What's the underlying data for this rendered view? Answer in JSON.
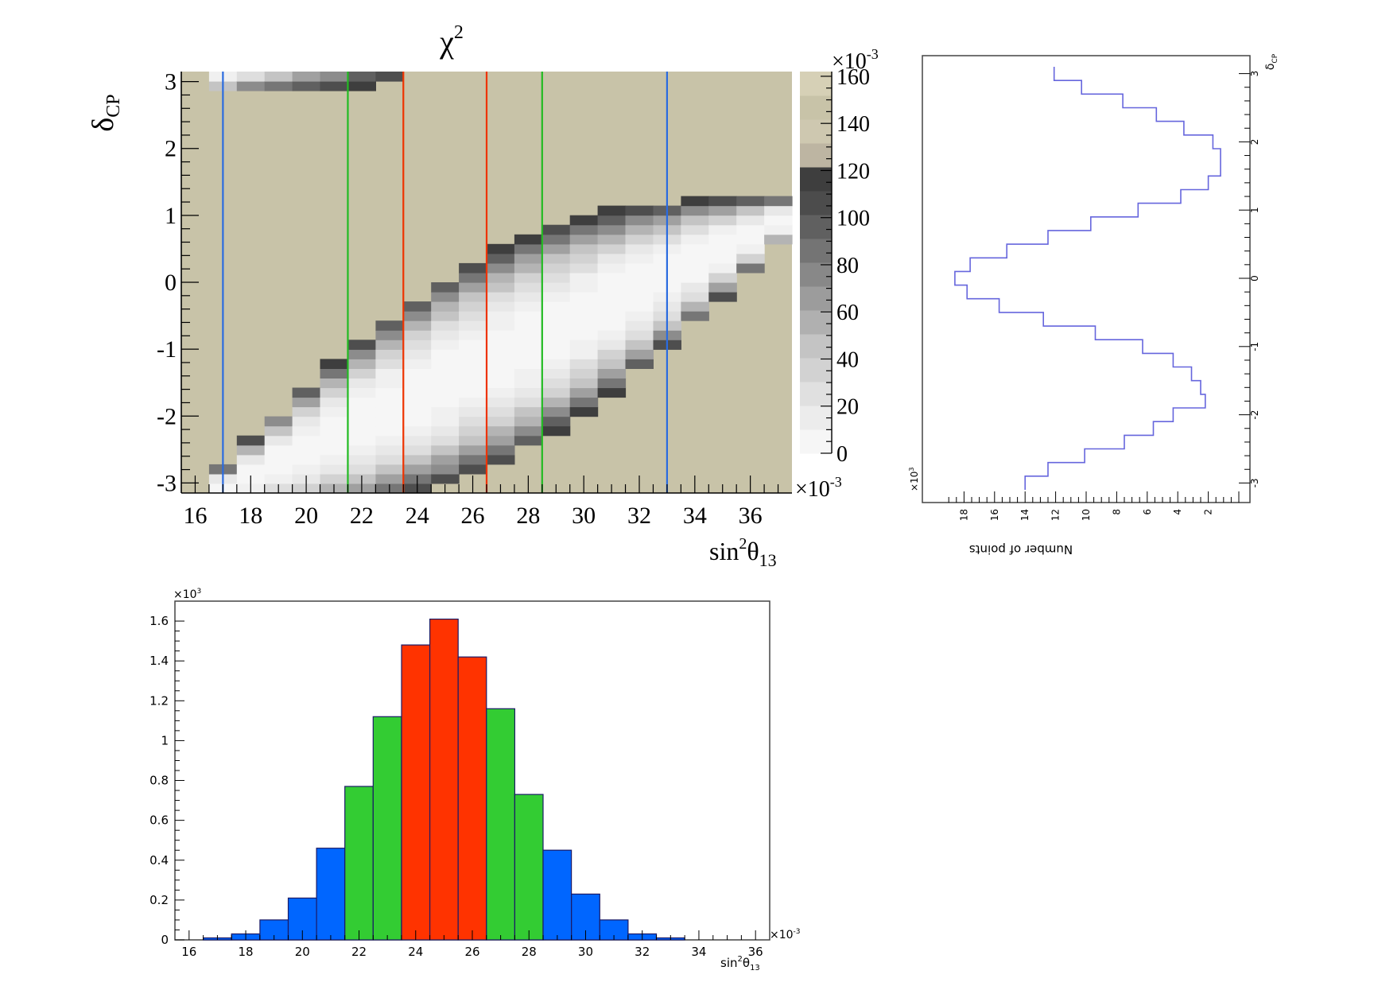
{
  "colors": {
    "frame_bg": "#c8c3a8",
    "blue_line": "#2a6be0",
    "green_line": "#22bb22",
    "red_line": "#ee3300",
    "hist_red": "#ff3300",
    "hist_green": "#33cc33",
    "hist_blue": "#0066ff",
    "profile_line": "#6666dd"
  },
  "chart_data": [
    {
      "type": "heatmap",
      "name": "chi2-map",
      "title": "χ",
      "title_sup": "2",
      "ylabel": "δ",
      "ylabel_sub": "CP",
      "xlabel": "sin",
      "xlabel_sup": "2",
      "xlabel_mid": "θ",
      "xlabel_sub": "13",
      "x_multiplier": "×10",
      "x_multiplier_exp": "-3",
      "xlim": [
        15.5,
        37.5
      ],
      "ylim": [
        -3.15,
        3.15
      ],
      "x_ticks": [
        "16",
        "18",
        "20",
        "22",
        "24",
        "26",
        "28",
        "30",
        "32",
        "34",
        "36"
      ],
      "x_tick_values": [
        16,
        18,
        20,
        22,
        24,
        26,
        28,
        30,
        32,
        34,
        36
      ],
      "y_ticks": [
        "3",
        "2",
        "1",
        "0",
        "-1",
        "-2",
        "-3"
      ],
      "y_tick_values": [
        3,
        2,
        1,
        0,
        -1,
        -2,
        -3
      ],
      "band": {
        "x_start": 16.5,
        "x_end": 37.5,
        "bins": 21,
        "center_slope": 0.2,
        "center_offset": -6.5,
        "half_width_start": 0.45,
        "half_width_end": 0.45,
        "tip_half_width": 0.2
      },
      "vertical_lines": [
        {
          "x": 17.0,
          "color": "blue"
        },
        {
          "x": 21.5,
          "color": "green"
        },
        {
          "x": 23.5,
          "color": "red"
        },
        {
          "x": 26.5,
          "color": "red"
        },
        {
          "x": 28.5,
          "color": "green"
        },
        {
          "x": 33.0,
          "color": "blue"
        }
      ],
      "colorbar": {
        "multiplier": "×10",
        "multiplier_exp": "-3",
        "ticks": [
          "160",
          "140",
          "120",
          "100",
          "80",
          "60",
          "40",
          "20",
          "0"
        ],
        "tick_values": [
          160,
          140,
          120,
          100,
          80,
          60,
          40,
          20,
          0
        ],
        "range": [
          0,
          160
        ],
        "levels": [
          "#f6f6f6",
          "#ececec",
          "#e0e0e0",
          "#d2d2d2",
          "#c4c4c4",
          "#b0b0b0",
          "#9c9c9c",
          "#888888",
          "#747474",
          "#606060",
          "#4c4c4c",
          "#3e3e3e",
          "#bdb5a2",
          "#cec8b0",
          "#c8c3a8",
          "#d6d0b6"
        ]
      }
    },
    {
      "type": "bar",
      "name": "sin2theta13-histogram",
      "x_ticks": [
        "16",
        "18",
        "20",
        "22",
        "24",
        "26",
        "28",
        "30",
        "32",
        "34",
        "36"
      ],
      "x_tick_values": [
        16,
        18,
        20,
        22,
        24,
        26,
        28,
        30,
        32,
        34,
        36
      ],
      "xlabel": "sin",
      "xlabel_sup": "2",
      "xlabel_mid": "θ",
      "xlabel_sub": "13",
      "x_multiplier": "×10",
      "x_multiplier_exp": "-3",
      "y_multiplier": "×10",
      "y_multiplier_exp": "3",
      "y_ticks": [
        "1.6",
        "1.4",
        "1.2",
        "1",
        "0.8",
        "0.6",
        "0.4",
        "0.2",
        "0"
      ],
      "y_tick_values": [
        1.6,
        1.4,
        1.2,
        1.0,
        0.8,
        0.6,
        0.4,
        0.2,
        0
      ],
      "xlim": [
        15.5,
        36.5
      ],
      "ylim": [
        0,
        1.7
      ],
      "bins": [
        {
          "x0": 16.5,
          "x1": 17.5,
          "value": 0.01,
          "band": "blue"
        },
        {
          "x0": 17.5,
          "x1": 18.5,
          "value": 0.03,
          "band": "blue"
        },
        {
          "x0": 18.5,
          "x1": 19.5,
          "value": 0.1,
          "band": "blue"
        },
        {
          "x0": 19.5,
          "x1": 20.5,
          "value": 0.21,
          "band": "blue"
        },
        {
          "x0": 20.5,
          "x1": 21.5,
          "value": 0.46,
          "band": "blue"
        },
        {
          "x0": 21.5,
          "x1": 22.5,
          "value": 0.77,
          "band": "green"
        },
        {
          "x0": 22.5,
          "x1": 23.5,
          "value": 1.12,
          "band": "green"
        },
        {
          "x0": 23.5,
          "x1": 24.5,
          "value": 1.48,
          "band": "red"
        },
        {
          "x0": 24.5,
          "x1": 25.5,
          "value": 1.61,
          "band": "red"
        },
        {
          "x0": 25.5,
          "x1": 26.5,
          "value": 1.42,
          "band": "red"
        },
        {
          "x0": 26.5,
          "x1": 27.5,
          "value": 1.16,
          "band": "green"
        },
        {
          "x0": 27.5,
          "x1": 28.5,
          "value": 0.73,
          "band": "green"
        },
        {
          "x0": 28.5,
          "x1": 29.5,
          "value": 0.45,
          "band": "blue"
        },
        {
          "x0": 29.5,
          "x1": 30.5,
          "value": 0.23,
          "band": "blue"
        },
        {
          "x0": 30.5,
          "x1": 31.5,
          "value": 0.1,
          "band": "blue"
        },
        {
          "x0": 31.5,
          "x1": 32.5,
          "value": 0.03,
          "band": "blue"
        },
        {
          "x0": 32.5,
          "x1": 33.5,
          "value": 0.01,
          "band": "blue"
        },
        {
          "x0": 33.5,
          "x1": 34.5,
          "value": 0.0,
          "band": "blue"
        },
        {
          "x0": 34.5,
          "x1": 35.5,
          "value": 0.0,
          "band": "blue"
        },
        {
          "x0": 35.5,
          "x1": 36.5,
          "value": 0.0,
          "band": "blue"
        }
      ]
    },
    {
      "type": "line",
      "name": "deltacp-profile-rotated",
      "xlabel": "Number of points",
      "ylabel": "δ",
      "ylabel_sub": "CP",
      "x_multiplier": "×10",
      "x_multiplier_exp": "3",
      "count_ticks": [
        "18",
        "16",
        "14",
        "12",
        "10",
        "8",
        "6",
        "4",
        "2"
      ],
      "count_tick_values": [
        18,
        16,
        14,
        12,
        10,
        8,
        6,
        4,
        2
      ],
      "delta_ticks": [
        "3",
        "2",
        "1",
        "0",
        "-1",
        "-2",
        "-3"
      ],
      "delta_tick_values": [
        3,
        2,
        1,
        0,
        -1,
        -2,
        -3
      ],
      "count_lim": [
        0,
        20
      ],
      "delta_lim": [
        -3.1,
        3.1
      ],
      "profile": [
        {
          "d0": 2.9,
          "d1": 3.1,
          "count": 12.1
        },
        {
          "d0": 2.7,
          "d1": 2.9,
          "count": 10.3
        },
        {
          "d0": 2.5,
          "d1": 2.7,
          "count": 7.6
        },
        {
          "d0": 2.3,
          "d1": 2.5,
          "count": 5.4
        },
        {
          "d0": 2.1,
          "d1": 2.3,
          "count": 3.6
        },
        {
          "d0": 1.9,
          "d1": 2.1,
          "count": 1.7
        },
        {
          "d0": 1.7,
          "d1": 1.9,
          "count": 1.2
        },
        {
          "d0": 1.5,
          "d1": 1.7,
          "count": 1.2
        },
        {
          "d0": 1.3,
          "d1": 1.5,
          "count": 2.0
        },
        {
          "d0": 1.1,
          "d1": 1.3,
          "count": 3.8
        },
        {
          "d0": 0.9,
          "d1": 1.1,
          "count": 6.6
        },
        {
          "d0": 0.7,
          "d1": 0.9,
          "count": 9.7
        },
        {
          "d0": 0.5,
          "d1": 0.7,
          "count": 12.5
        },
        {
          "d0": 0.3,
          "d1": 0.5,
          "count": 15.2
        },
        {
          "d0": 0.1,
          "d1": 0.3,
          "count": 17.6
        },
        {
          "d0": -0.1,
          "d1": 0.1,
          "count": 18.6
        },
        {
          "d0": -0.3,
          "d1": -0.1,
          "count": 17.8
        },
        {
          "d0": -0.5,
          "d1": -0.3,
          "count": 15.7
        },
        {
          "d0": -0.7,
          "d1": -0.5,
          "count": 12.8
        },
        {
          "d0": -0.9,
          "d1": -0.7,
          "count": 9.4
        },
        {
          "d0": -1.1,
          "d1": -0.9,
          "count": 6.3
        },
        {
          "d0": -1.3,
          "d1": -1.1,
          "count": 4.3
        },
        {
          "d0": -1.5,
          "d1": -1.3,
          "count": 3.1
        },
        {
          "d0": -1.7,
          "d1": -1.5,
          "count": 2.5
        },
        {
          "d0": -1.9,
          "d1": -1.7,
          "count": 2.2
        },
        {
          "d0": -2.1,
          "d1": -1.9,
          "count": 4.3
        },
        {
          "d0": -2.3,
          "d1": -2.1,
          "count": 5.6
        },
        {
          "d0": -2.5,
          "d1": -2.3,
          "count": 7.5
        },
        {
          "d0": -2.7,
          "d1": -2.5,
          "count": 10.1
        },
        {
          "d0": -2.9,
          "d1": -2.7,
          "count": 12.5
        },
        {
          "d0": -3.1,
          "d1": -2.9,
          "count": 14.0
        }
      ]
    }
  ]
}
